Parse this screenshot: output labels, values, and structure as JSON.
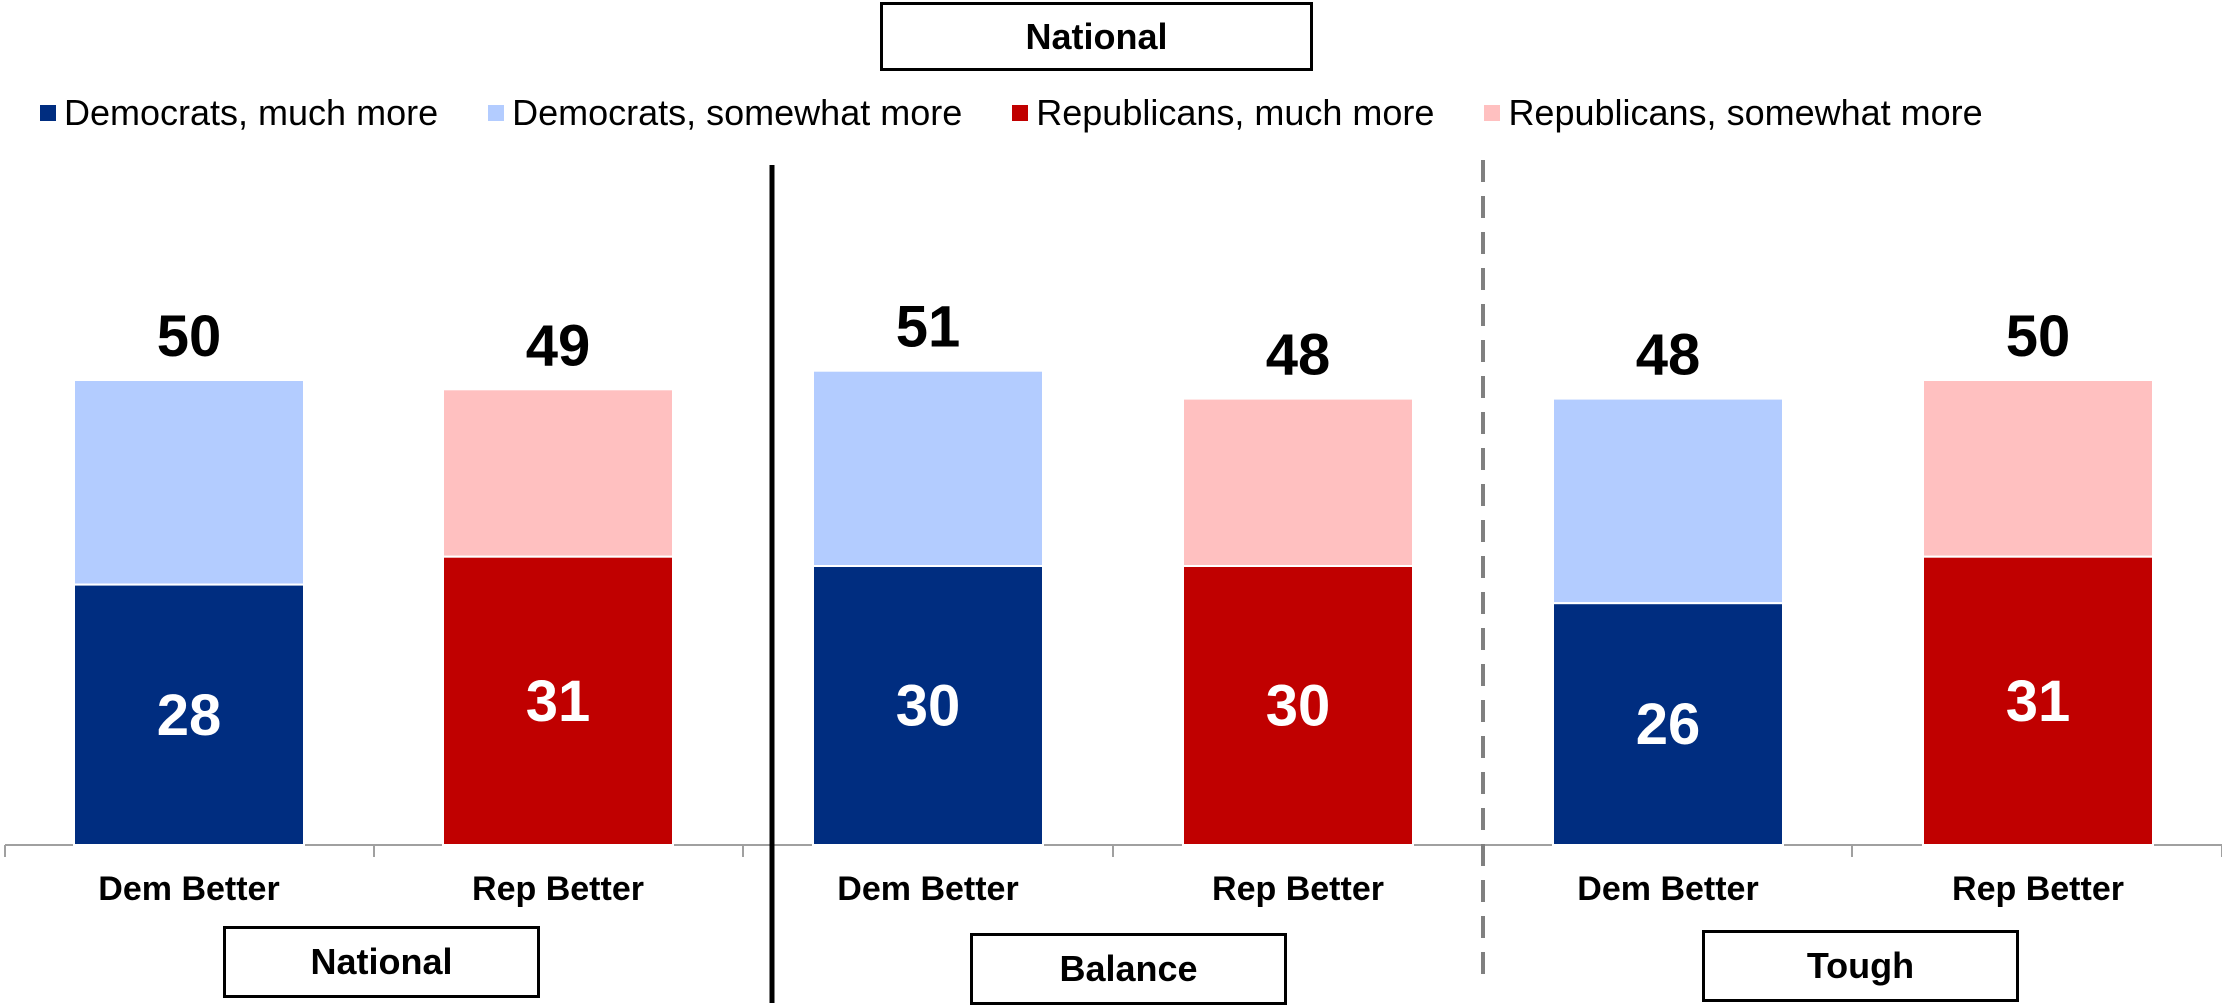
{
  "title": "National",
  "colors": {
    "dem_much": "#002D80",
    "dem_somewhat": "#B3CCFF",
    "rep_much": "#C00000",
    "rep_somewhat": "#FFC0C0"
  },
  "legend": [
    {
      "label": "Democrats, much more",
      "color": "#002D80"
    },
    {
      "label": "Democrats, somewhat more",
      "color": "#B3CCFF"
    },
    {
      "label": "Republicans, much more",
      "color": "#C00000"
    },
    {
      "label": "Republicans, somewhat more",
      "color": "#FFC0C0"
    }
  ],
  "panels": [
    {
      "label": "National"
    },
    {
      "label": "Balance"
    },
    {
      "label": "Tough"
    }
  ],
  "chart_data": {
    "type": "bar",
    "stacked": true,
    "categories": [
      "Dem Better",
      "Rep Better",
      "Dem Better",
      "Rep Better",
      "Dem Better",
      "Rep Better"
    ],
    "groups": [
      "National",
      "National",
      "Balance",
      "Balance",
      "Tough",
      "Tough"
    ],
    "bars": [
      {
        "category": "Dem Better",
        "group": "National",
        "much": 28,
        "total": 50,
        "party": "dem"
      },
      {
        "category": "Rep Better",
        "group": "National",
        "much": 31,
        "total": 49,
        "party": "rep"
      },
      {
        "category": "Dem Better",
        "group": "Balance",
        "much": 30,
        "total": 51,
        "party": "dem"
      },
      {
        "category": "Rep Better",
        "group": "Balance",
        "much": 30,
        "total": 48,
        "party": "rep"
      },
      {
        "category": "Dem Better",
        "group": "Tough",
        "much": 26,
        "total": 48,
        "party": "dem"
      },
      {
        "category": "Rep Better",
        "group": "Tough",
        "much": 31,
        "total": 50,
        "party": "rep"
      }
    ],
    "series": [
      {
        "name": "Democrats, much more"
      },
      {
        "name": "Democrats, somewhat more"
      },
      {
        "name": "Republicans, much more"
      },
      {
        "name": "Republicans, somewhat more"
      }
    ],
    "ylim": [
      0,
      56
    ],
    "grid": false,
    "legend_position": "top"
  }
}
